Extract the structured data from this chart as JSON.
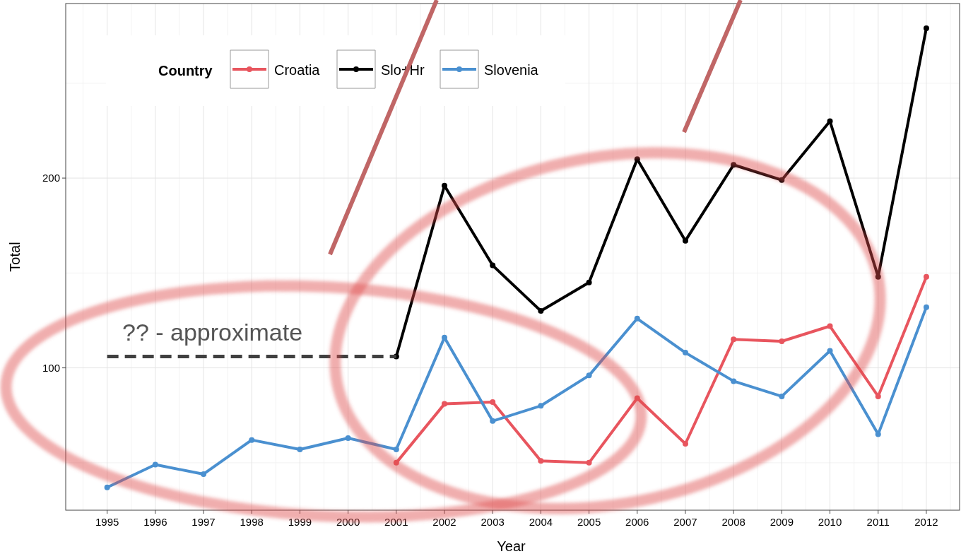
{
  "chart_data": {
    "type": "line",
    "xlabel": "Year",
    "ylabel": "Total",
    "legend_title": "Country",
    "legend": "top left",
    "grid": true,
    "marker": "circle",
    "x": [
      1995,
      1996,
      1997,
      1998,
      1999,
      2000,
      2001,
      2002,
      2003,
      2004,
      2005,
      2006,
      2007,
      2008,
      2009,
      2010,
      2011,
      2012
    ],
    "xlim": [
      1994.14,
      2012.69
    ],
    "xticks": [
      1995,
      1996,
      1997,
      1998,
      1999,
      2000,
      2001,
      2002,
      2003,
      2004,
      2005,
      2006,
      2007,
      2008,
      2009,
      2010,
      2011,
      2012
    ],
    "ylim": [
      25,
      292
    ],
    "yticks": [
      100,
      200
    ],
    "series": [
      {
        "name": "Croatia",
        "color": "#e8555e",
        "values": [
          null,
          null,
          null,
          null,
          null,
          null,
          50,
          81,
          82,
          51,
          50,
          84,
          60,
          115,
          114,
          122,
          85,
          148
        ]
      },
      {
        "name": "Slo+Hr",
        "color": "#000000",
        "values": [
          null,
          null,
          null,
          null,
          null,
          null,
          106,
          196,
          154,
          130,
          145,
          210,
          167,
          207,
          199,
          230,
          148,
          279
        ]
      },
      {
        "name": "Slovenia",
        "color": "#4a90d0",
        "values": [
          37,
          49,
          44,
          62,
          57,
          63,
          57,
          116,
          72,
          80,
          96,
          126,
          108,
          93,
          85,
          109,
          65,
          132
        ]
      },
      {
        "type": "line",
        "color": "#404040",
        "line_style": "dashed",
        "marker": "none",
        "x": [
          1995,
          2001
        ],
        "values": [
          106,
          106
        ]
      }
    ],
    "annotations": [
      "?? - approximate"
    ]
  }
}
